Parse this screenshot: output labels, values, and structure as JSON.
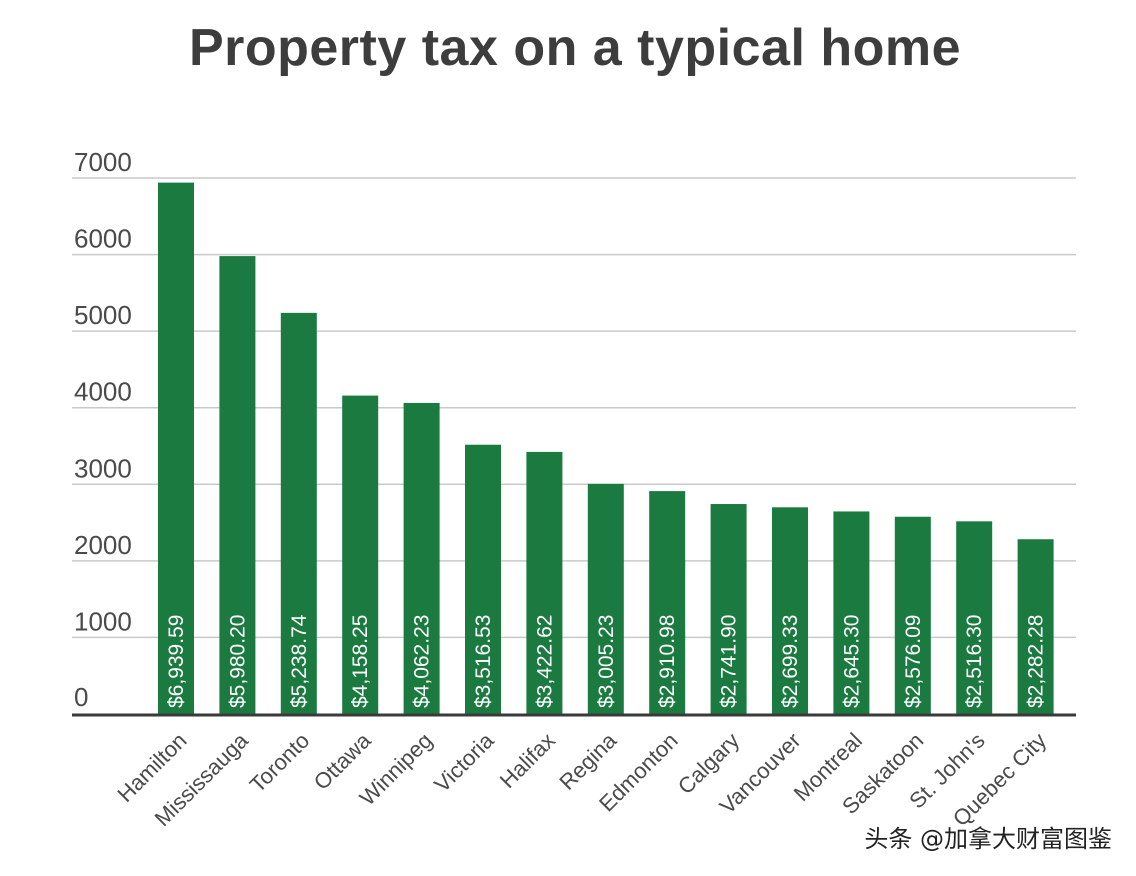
{
  "chart_data": {
    "type": "bar",
    "title": "Property tax on a typical home",
    "xlabel": "",
    "ylabel": "",
    "ylim": [
      0,
      7000
    ],
    "yticks": [
      "0",
      "1000",
      "2000",
      "3000",
      "4000",
      "5000",
      "6000",
      "7000"
    ],
    "grid": true,
    "categories": [
      "Hamilton",
      "Mississauga",
      "Toronto",
      "Ottawa",
      "Winnipeg",
      "Victoria",
      "Halifax",
      "Regina",
      "Edmonton",
      "Calgary",
      "Vancouver",
      "Montreal",
      "Saskatoon",
      "St. John's",
      "Quebec City"
    ],
    "values": [
      6939.59,
      5980.2,
      5238.74,
      4158.25,
      4062.23,
      3516.53,
      3422.62,
      3005.23,
      2910.98,
      2741.9,
      2699.33,
      2645.3,
      2576.09,
      2516.3,
      2282.28
    ],
    "data_labels": [
      "$6,939.59",
      "$5,980.20",
      "$5,238.74",
      "$4,158.25",
      "$4,062.23",
      "$3,516.53",
      "$3,422.62",
      "$3,005.23",
      "$2,910.98",
      "$2,741.90",
      "$2,699.33",
      "$2,645.30",
      "$2,576.09",
      "$2,516.30",
      "$2,282.28"
    ],
    "bar_color": "#1a7a40"
  },
  "watermark": "头条 @加拿大财富图鉴"
}
